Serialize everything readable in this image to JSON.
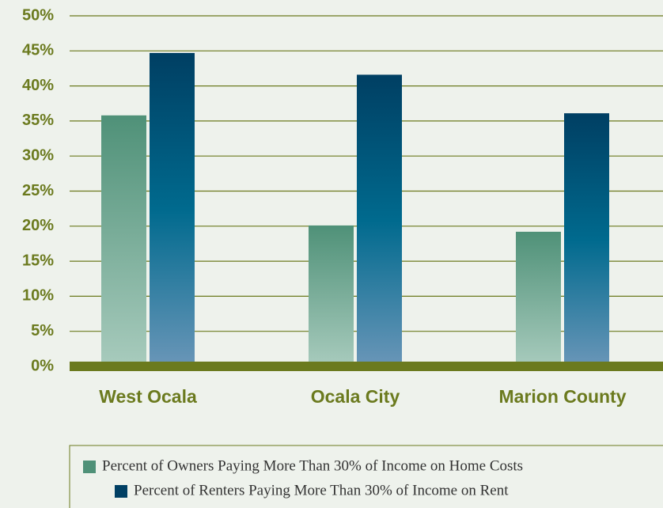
{
  "chart_data": {
    "type": "bar",
    "categories": [
      "West Ocala",
      "Ocala City",
      "Marion County"
    ],
    "series": [
      {
        "name": "Percent of Owners Paying More Than 30% of Income on Home Costs",
        "color": "#4f9178",
        "values": [
          35.8,
          20.1,
          19.2
        ]
      },
      {
        "name": "Percent of Renters Paying More Than 30% of Income on Rent",
        "color": "#003f63",
        "values": [
          44.7,
          41.6,
          36.1
        ]
      }
    ],
    "ylim": [
      0,
      50
    ],
    "yticks": [
      {
        "value": 0,
        "label": "0%"
      },
      {
        "value": 5,
        "label": "5%"
      },
      {
        "value": 10,
        "label": "10%"
      },
      {
        "value": 15,
        "label": "15%"
      },
      {
        "value": 20,
        "label": "20%"
      },
      {
        "value": 25,
        "label": "25%"
      },
      {
        "value": 30,
        "label": "30%"
      },
      {
        "value": 35,
        "label": "35%"
      },
      {
        "value": 40,
        "label": "40%"
      },
      {
        "value": 45,
        "label": "45%"
      },
      {
        "value": 50,
        "label": "50%"
      }
    ],
    "grid": true,
    "legend": "bottom"
  }
}
